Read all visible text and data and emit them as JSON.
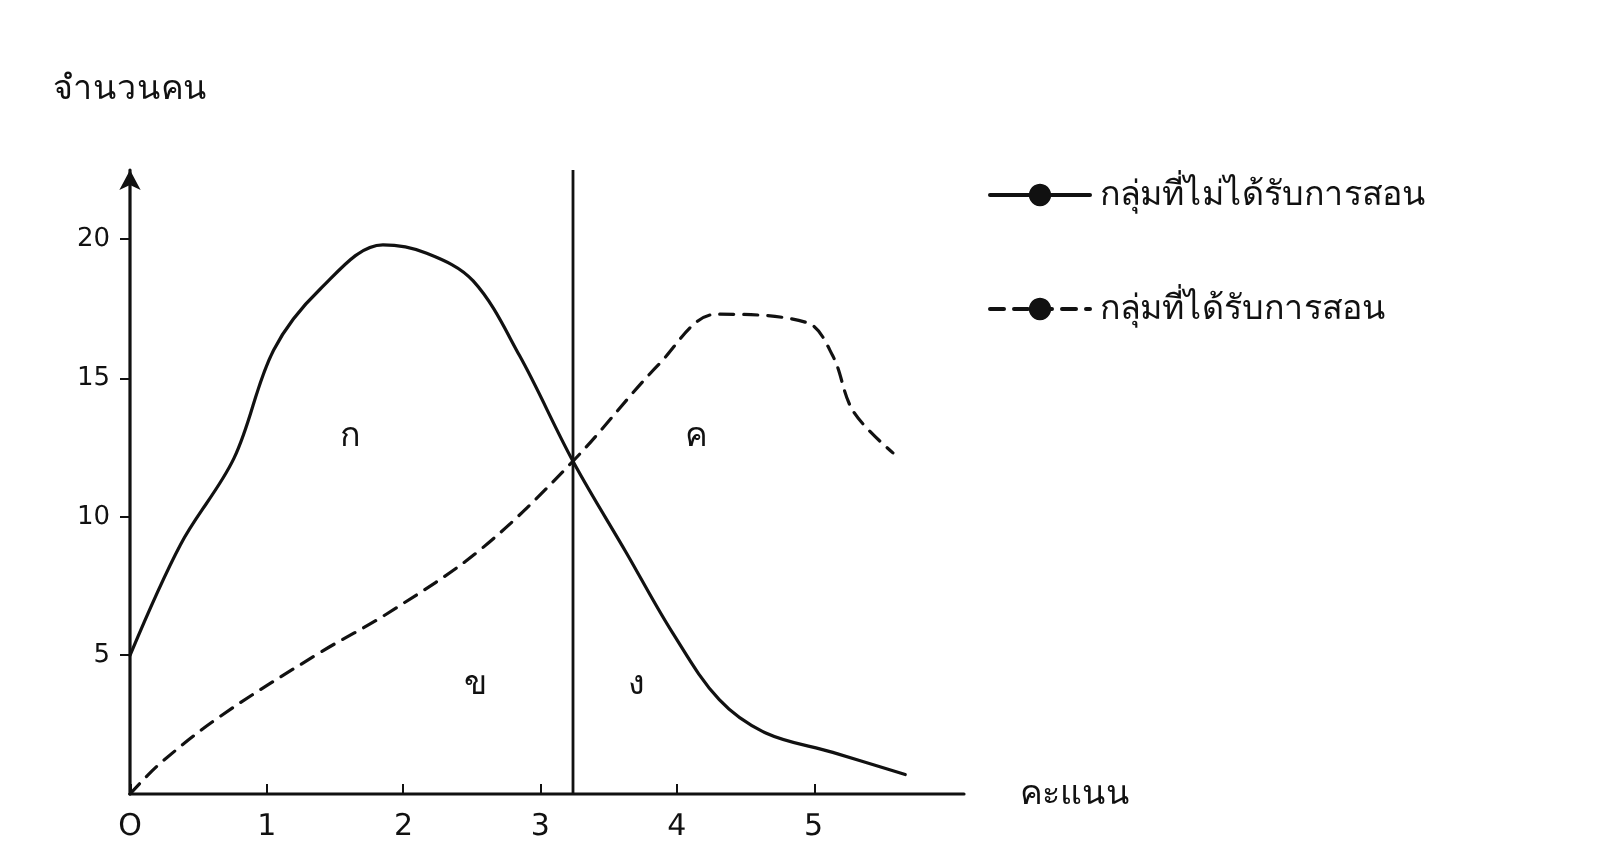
{
  "chart_data": {
    "type": "line",
    "ylabel": "จำนวนคน",
    "xlabel": "คะแนน",
    "xlim": [
      0,
      6.1
    ],
    "xticks": [
      {
        "value": 0,
        "label": "O"
      },
      1,
      2,
      3,
      4,
      5
    ],
    "ylim": [
      0,
      22.5
    ],
    "yticks": [
      5,
      10,
      15,
      20
    ],
    "series": [
      {
        "name": "กลุ่มที่ไม่ได้รับการสอน",
        "color": "#111111",
        "line_style": "solid",
        "x": [
          0,
          0.37,
          0.76,
          1.05,
          1.39,
          1.85,
          2.17,
          2.51,
          2.85,
          3.24,
          3.63,
          3.97,
          4.31,
          4.65,
          5.14,
          5.67
        ],
        "values": [
          5,
          9,
          12.1,
          16,
          18.2,
          19.8,
          19.5,
          18.5,
          15.8,
          12,
          8.7,
          5.8,
          3.4,
          2.2,
          1.5,
          0.7
        ]
      },
      {
        "name": "กลุ่มที่ได้รับการสอน",
        "color": "#111111",
        "line_style": "dashed",
        "x": [
          0,
          0.22,
          0.66,
          1.39,
          1.88,
          2.56,
          3.24,
          3.87,
          4.29,
          4.95,
          5.14,
          5.29,
          5.58
        ],
        "values": [
          0,
          1.1,
          2.8,
          5.1,
          6.5,
          8.8,
          12,
          15.5,
          17.3,
          17,
          15.8,
          13.8,
          12.3
        ]
      }
    ],
    "ref_lines": [
      {
        "axis": "x",
        "value": 3.24,
        "label": null,
        "color": "#111111"
      }
    ],
    "annotations": [
      "ก",
      "ค",
      "ข",
      "ง"
    ],
    "grid": false,
    "legend": "top right",
    "marker": "none"
  }
}
